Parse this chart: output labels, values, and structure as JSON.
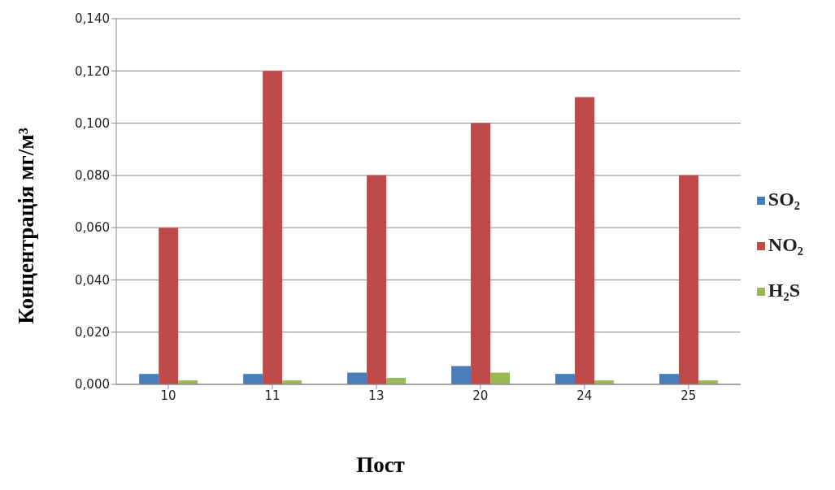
{
  "chart_data": {
    "type": "bar",
    "xlabel": "Пост",
    "ylabel": "Концентрація мг/м³",
    "categories": [
      "10",
      "11",
      "13",
      "20",
      "24",
      "25"
    ],
    "series": [
      {
        "name": "SO₂",
        "color": "#4a7ebb",
        "values": [
          0.004,
          0.004,
          0.0045,
          0.007,
          0.004,
          0.004
        ]
      },
      {
        "name": "NO₂",
        "color": "#be4b48",
        "values": [
          0.06,
          0.12,
          0.08,
          0.1,
          0.11,
          0.08
        ]
      },
      {
        "name": "H₂S",
        "color": "#98b954",
        "values": [
          0.0015,
          0.0015,
          0.0025,
          0.0045,
          0.0015,
          0.0015
        ]
      }
    ],
    "ylim": [
      0,
      0.14
    ],
    "yticks": [
      {
        "value": 0,
        "label": "0,000"
      },
      {
        "value": 0.02,
        "label": "0,020"
      },
      {
        "value": 0.04,
        "label": "0,040"
      },
      {
        "value": 0.06,
        "label": "0,060"
      },
      {
        "value": 0.08,
        "label": "0,080"
      },
      {
        "value": 0.1,
        "label": "0,100"
      },
      {
        "value": 0.12,
        "label": "0,120"
      },
      {
        "value": 0.14,
        "label": "0,140"
      }
    ],
    "grid": "y",
    "legend": "right"
  }
}
